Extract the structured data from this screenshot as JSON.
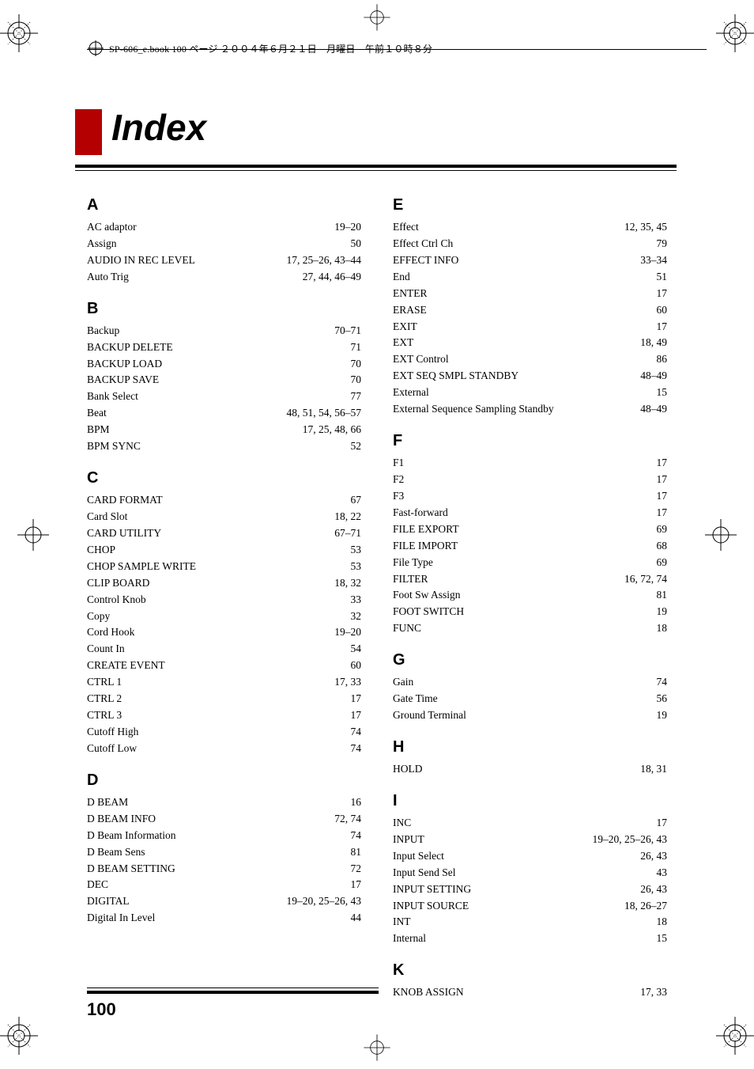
{
  "header": {
    "text": "SP-606_e.book 100 ページ ２００４年６月２１日　月曜日　午前１０時８分"
  },
  "title": "Index",
  "page_number": "100",
  "columns": {
    "left": [
      {
        "letter": "A",
        "entries": [
          {
            "term": "AC adaptor",
            "pages": "19–20"
          },
          {
            "term": "Assign",
            "pages": "50"
          },
          {
            "term": "AUDIO IN REC LEVEL",
            "pages": "17, 25–26, 43–44"
          },
          {
            "term": "Auto Trig",
            "pages": "27, 44, 46–49"
          }
        ]
      },
      {
        "letter": "B",
        "entries": [
          {
            "term": "Backup",
            "pages": "70–71"
          },
          {
            "term": "BACKUP DELETE",
            "pages": "71"
          },
          {
            "term": "BACKUP LOAD",
            "pages": "70"
          },
          {
            "term": "BACKUP SAVE",
            "pages": "70"
          },
          {
            "term": "Bank Select",
            "pages": "77"
          },
          {
            "term": "Beat",
            "pages": "48, 51, 54, 56–57"
          },
          {
            "term": "BPM",
            "pages": "17, 25, 48, 66"
          },
          {
            "term": "BPM SYNC",
            "pages": "52"
          }
        ]
      },
      {
        "letter": "C",
        "entries": [
          {
            "term": "CARD FORMAT",
            "pages": "67"
          },
          {
            "term": "Card Slot",
            "pages": "18, 22"
          },
          {
            "term": "CARD UTILITY",
            "pages": "67–71"
          },
          {
            "term": "CHOP",
            "pages": "53"
          },
          {
            "term": "CHOP SAMPLE WRITE",
            "pages": "53"
          },
          {
            "term": "CLIP BOARD",
            "pages": "18, 32"
          },
          {
            "term": "Control Knob",
            "pages": "33"
          },
          {
            "term": "Copy",
            "pages": "32"
          },
          {
            "term": "Cord Hook",
            "pages": "19–20"
          },
          {
            "term": "Count In",
            "pages": "54"
          },
          {
            "term": "CREATE EVENT",
            "pages": "60"
          },
          {
            "term": "CTRL 1",
            "pages": "17, 33"
          },
          {
            "term": "CTRL 2",
            "pages": "17"
          },
          {
            "term": "CTRL 3",
            "pages": "17"
          },
          {
            "term": "Cutoff High",
            "pages": "74"
          },
          {
            "term": "Cutoff Low",
            "pages": "74"
          }
        ]
      },
      {
        "letter": "D",
        "entries": [
          {
            "term": "D BEAM",
            "pages": "16"
          },
          {
            "term": "D BEAM INFO",
            "pages": "72, 74"
          },
          {
            "term": "D Beam Information",
            "pages": "74"
          },
          {
            "term": "D Beam Sens",
            "pages": "81"
          },
          {
            "term": "D BEAM SETTING",
            "pages": "72"
          },
          {
            "term": "DEC",
            "pages": "17"
          },
          {
            "term": "DIGITAL",
            "pages": "19–20, 25–26, 43"
          },
          {
            "term": "Digital In Level",
            "pages": "44"
          }
        ]
      }
    ],
    "right": [
      {
        "letter": "E",
        "entries": [
          {
            "term": "Effect",
            "pages": "12, 35, 45"
          },
          {
            "term": "Effect Ctrl Ch",
            "pages": "79"
          },
          {
            "term": "EFFECT INFO",
            "pages": "33–34"
          },
          {
            "term": "End",
            "pages": "51"
          },
          {
            "term": "ENTER",
            "pages": "17"
          },
          {
            "term": "ERASE",
            "pages": "60"
          },
          {
            "term": "EXIT",
            "pages": "17"
          },
          {
            "term": "EXT",
            "pages": "18, 49"
          },
          {
            "term": "EXT Control",
            "pages": "86"
          },
          {
            "term": "EXT SEQ SMPL STANDBY",
            "pages": "48–49"
          },
          {
            "term": "External",
            "pages": "15"
          },
          {
            "term": "External Sequence Sampling Standby",
            "pages": "48–49"
          }
        ]
      },
      {
        "letter": "F",
        "entries": [
          {
            "term": "F1",
            "pages": "17"
          },
          {
            "term": "F2",
            "pages": "17"
          },
          {
            "term": "F3",
            "pages": "17"
          },
          {
            "term": "Fast-forward",
            "pages": "17"
          },
          {
            "term": "FILE EXPORT",
            "pages": "69"
          },
          {
            "term": "FILE IMPORT",
            "pages": "68"
          },
          {
            "term": "File Type",
            "pages": "69"
          },
          {
            "term": "FILTER",
            "pages": "16, 72, 74"
          },
          {
            "term": "Foot Sw Assign",
            "pages": "81"
          },
          {
            "term": "FOOT SWITCH",
            "pages": "19"
          },
          {
            "term": "FUNC",
            "pages": "18"
          }
        ]
      },
      {
        "letter": "G",
        "entries": [
          {
            "term": "Gain",
            "pages": "74"
          },
          {
            "term": "Gate Time",
            "pages": "56"
          },
          {
            "term": "Ground Terminal",
            "pages": "19"
          }
        ]
      },
      {
        "letter": "H",
        "entries": [
          {
            "term": "HOLD",
            "pages": "18, 31"
          }
        ]
      },
      {
        "letter": "I",
        "entries": [
          {
            "term": "INC",
            "pages": "17"
          },
          {
            "term": "INPUT",
            "pages": "19–20, 25–26, 43"
          },
          {
            "term": "Input Select",
            "pages": "26, 43"
          },
          {
            "term": "Input Send Sel",
            "pages": "43"
          },
          {
            "term": "INPUT SETTING",
            "pages": "26, 43"
          },
          {
            "term": "INPUT SOURCE",
            "pages": "18, 26–27"
          },
          {
            "term": "INT",
            "pages": "18"
          },
          {
            "term": "Internal",
            "pages": "15"
          }
        ]
      },
      {
        "letter": "K",
        "entries": [
          {
            "term": "KNOB ASSIGN",
            "pages": "17, 33"
          }
        ]
      }
    ]
  }
}
